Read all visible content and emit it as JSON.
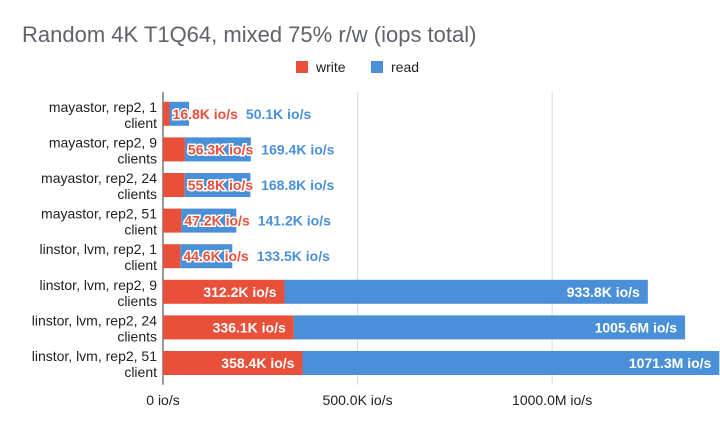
{
  "chart_data": {
    "type": "bar",
    "orientation": "horizontal",
    "stacked": true,
    "title": "Random 4K T1Q64, mixed 75% r/w (iops total)",
    "xlabel": "",
    "ylabel": "",
    "legend_position": "top",
    "grid": true,
    "xlim": [
      0,
      1380
    ],
    "x_ticks": [
      {
        "value": 0,
        "label": "0 io/s"
      },
      {
        "value": 500,
        "label": "500.0K io/s"
      },
      {
        "value": 1000,
        "label": "1000.0M io/s"
      }
    ],
    "categories": [
      [
        "mayastor, rep2, 1",
        "client"
      ],
      [
        "mayastor, rep2, 9",
        "clients"
      ],
      [
        "mayastor, rep2, 24",
        "clients"
      ],
      [
        "mayastor, rep2, 51",
        "client"
      ],
      [
        "linstor, lvm, rep2, 1",
        "client"
      ],
      [
        "linstor, lvm, rep2, 9",
        "clients"
      ],
      [
        "linstor, lvm, rep2, 24",
        "clients"
      ],
      [
        "linstor, lvm, rep2, 51",
        "client"
      ]
    ],
    "series": [
      {
        "name": "write",
        "color": "#e8503a",
        "values": [
          16.8,
          56.3,
          55.8,
          47.2,
          44.6,
          312.2,
          336.1,
          358.4
        ],
        "labels": [
          "16.8K io/s",
          "56.3K io/s",
          "55.8K io/s",
          "47.2K io/s",
          "44.6K io/s",
          "312.2K io/s",
          "336.1K io/s",
          "358.4K io/s"
        ]
      },
      {
        "name": "read",
        "color": "#4a90d9",
        "values": [
          50.1,
          169.4,
          168.8,
          141.2,
          133.5,
          933.8,
          1005.6,
          1071.3
        ],
        "labels": [
          "50.1K io/s",
          "169.4K io/s",
          "168.8K io/s",
          "141.2K io/s",
          "133.5K io/s",
          "933.8K io/s",
          "1005.6M io/s",
          "1071.3M io/s"
        ]
      }
    ]
  }
}
